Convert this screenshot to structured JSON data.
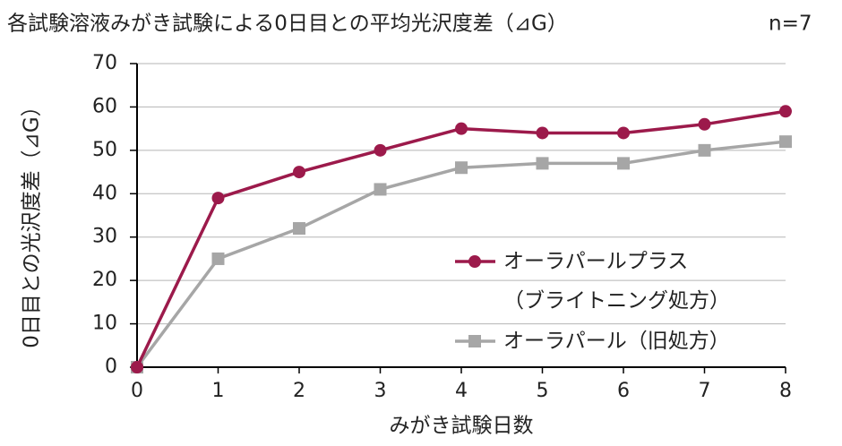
{
  "chart_data": {
    "type": "line",
    "title": "各試験溶液みがき試験による0日目との平均光沢度差（⊿G）",
    "subtitle": "n=7",
    "x_label": "みがき試験日数",
    "y_label": "0日目との光沢度差（⊿G）",
    "x": [
      0,
      1,
      2,
      3,
      4,
      5,
      6,
      7,
      8
    ],
    "xlim": [
      0,
      8
    ],
    "xticks": [
      0,
      1,
      2,
      3,
      4,
      5,
      6,
      7,
      8
    ],
    "ylim": [
      0,
      70
    ],
    "yticks": [
      0,
      10,
      20,
      30,
      40,
      50,
      60,
      70
    ],
    "grid": true,
    "series": [
      {
        "name": "オーラパールプラス\n（ブライトニング処方）",
        "color": "#9c1a4b",
        "marker": "circle",
        "values": [
          0,
          39,
          45,
          50,
          55,
          54,
          54,
          56,
          59
        ]
      },
      {
        "name": "オーラパール（旧処方）",
        "color": "#a6a6a6",
        "marker": "square",
        "values": [
          0,
          25,
          32,
          41,
          46,
          47,
          47,
          50,
          52
        ]
      }
    ]
  }
}
